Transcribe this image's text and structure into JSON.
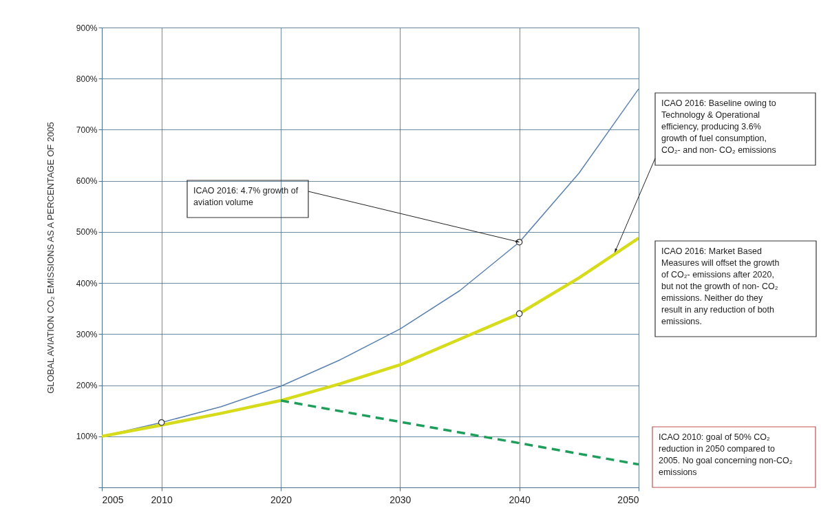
{
  "chart_data": {
    "type": "line",
    "ylabel": "GLOBAL AVIATION  CO₂ EMISSIONS  AS A PERCENTAGE OF 2005",
    "xlim": [
      2005,
      2050
    ],
    "xticks": [
      2005,
      2010,
      2020,
      2030,
      2040,
      2050
    ],
    "ylim": [
      0,
      900
    ],
    "yticks": [
      {
        "value": 0,
        "label": null
      },
      {
        "value": 100,
        "label": "100%"
      },
      {
        "value": 200,
        "label": "200%"
      },
      {
        "value": 300,
        "label": "300%"
      },
      {
        "value": 400,
        "label": "400%"
      },
      {
        "value": 500,
        "label": "500%"
      },
      {
        "value": 600,
        "label": "600%"
      },
      {
        "value": 700,
        "label": "700%"
      },
      {
        "value": 800,
        "label": "800%"
      },
      {
        "value": 900,
        "label": "900%"
      }
    ],
    "grid": true,
    "series": [
      {
        "color": "#5b82b0",
        "line_style": "solid",
        "x": [
          2005,
          2010,
          2015,
          2020,
          2025,
          2030,
          2035,
          2040,
          2045,
          2050
        ],
        "values": [
          100,
          127,
          158,
          198,
          250,
          310,
          385,
          480,
          615,
          780
        ]
      },
      {
        "color": "#d6dc1c",
        "line_style": "solid",
        "x": [
          2005,
          2010,
          2015,
          2020,
          2025,
          2030,
          2035,
          2040,
          2045,
          2050
        ],
        "values": [
          100,
          122,
          145,
          170,
          203,
          240,
          290,
          340,
          410,
          488
        ]
      },
      {
        "color": "#1e9e5a",
        "line_style": "dashed",
        "x": [
          2020,
          2050
        ],
        "values": [
          170,
          45
        ]
      },
      {
        "type": "scatter",
        "color": "#ffffff",
        "marker": "circle",
        "x": [
          2010,
          2040,
          2040
        ],
        "values": [
          127,
          480,
          340
        ]
      }
    ],
    "annotations": [
      {
        "text": "ICAO 2016: 4.7% growth of aviation volume",
        "x": 2040,
        "y": 480
      },
      {
        "text": "ICAO 2016: Baseline owing to Technology & Operational efficiency, producing 3.6% growth of fuel consumption,  CO₂- and non- CO₂ emissions",
        "x": 2048,
        "y": 460
      },
      "ICAO 2016: Market Based Measures will offset the growth of CO₂- emissions after 2020, but not the growth of non- CO₂ emissions. Neither do they result in any reduction of both emissions.",
      "ICAO 2010: goal of 50% CO₂ reduction in 2050 compared to 2005. No goal concerning non-CO₂ emissions"
    ]
  }
}
